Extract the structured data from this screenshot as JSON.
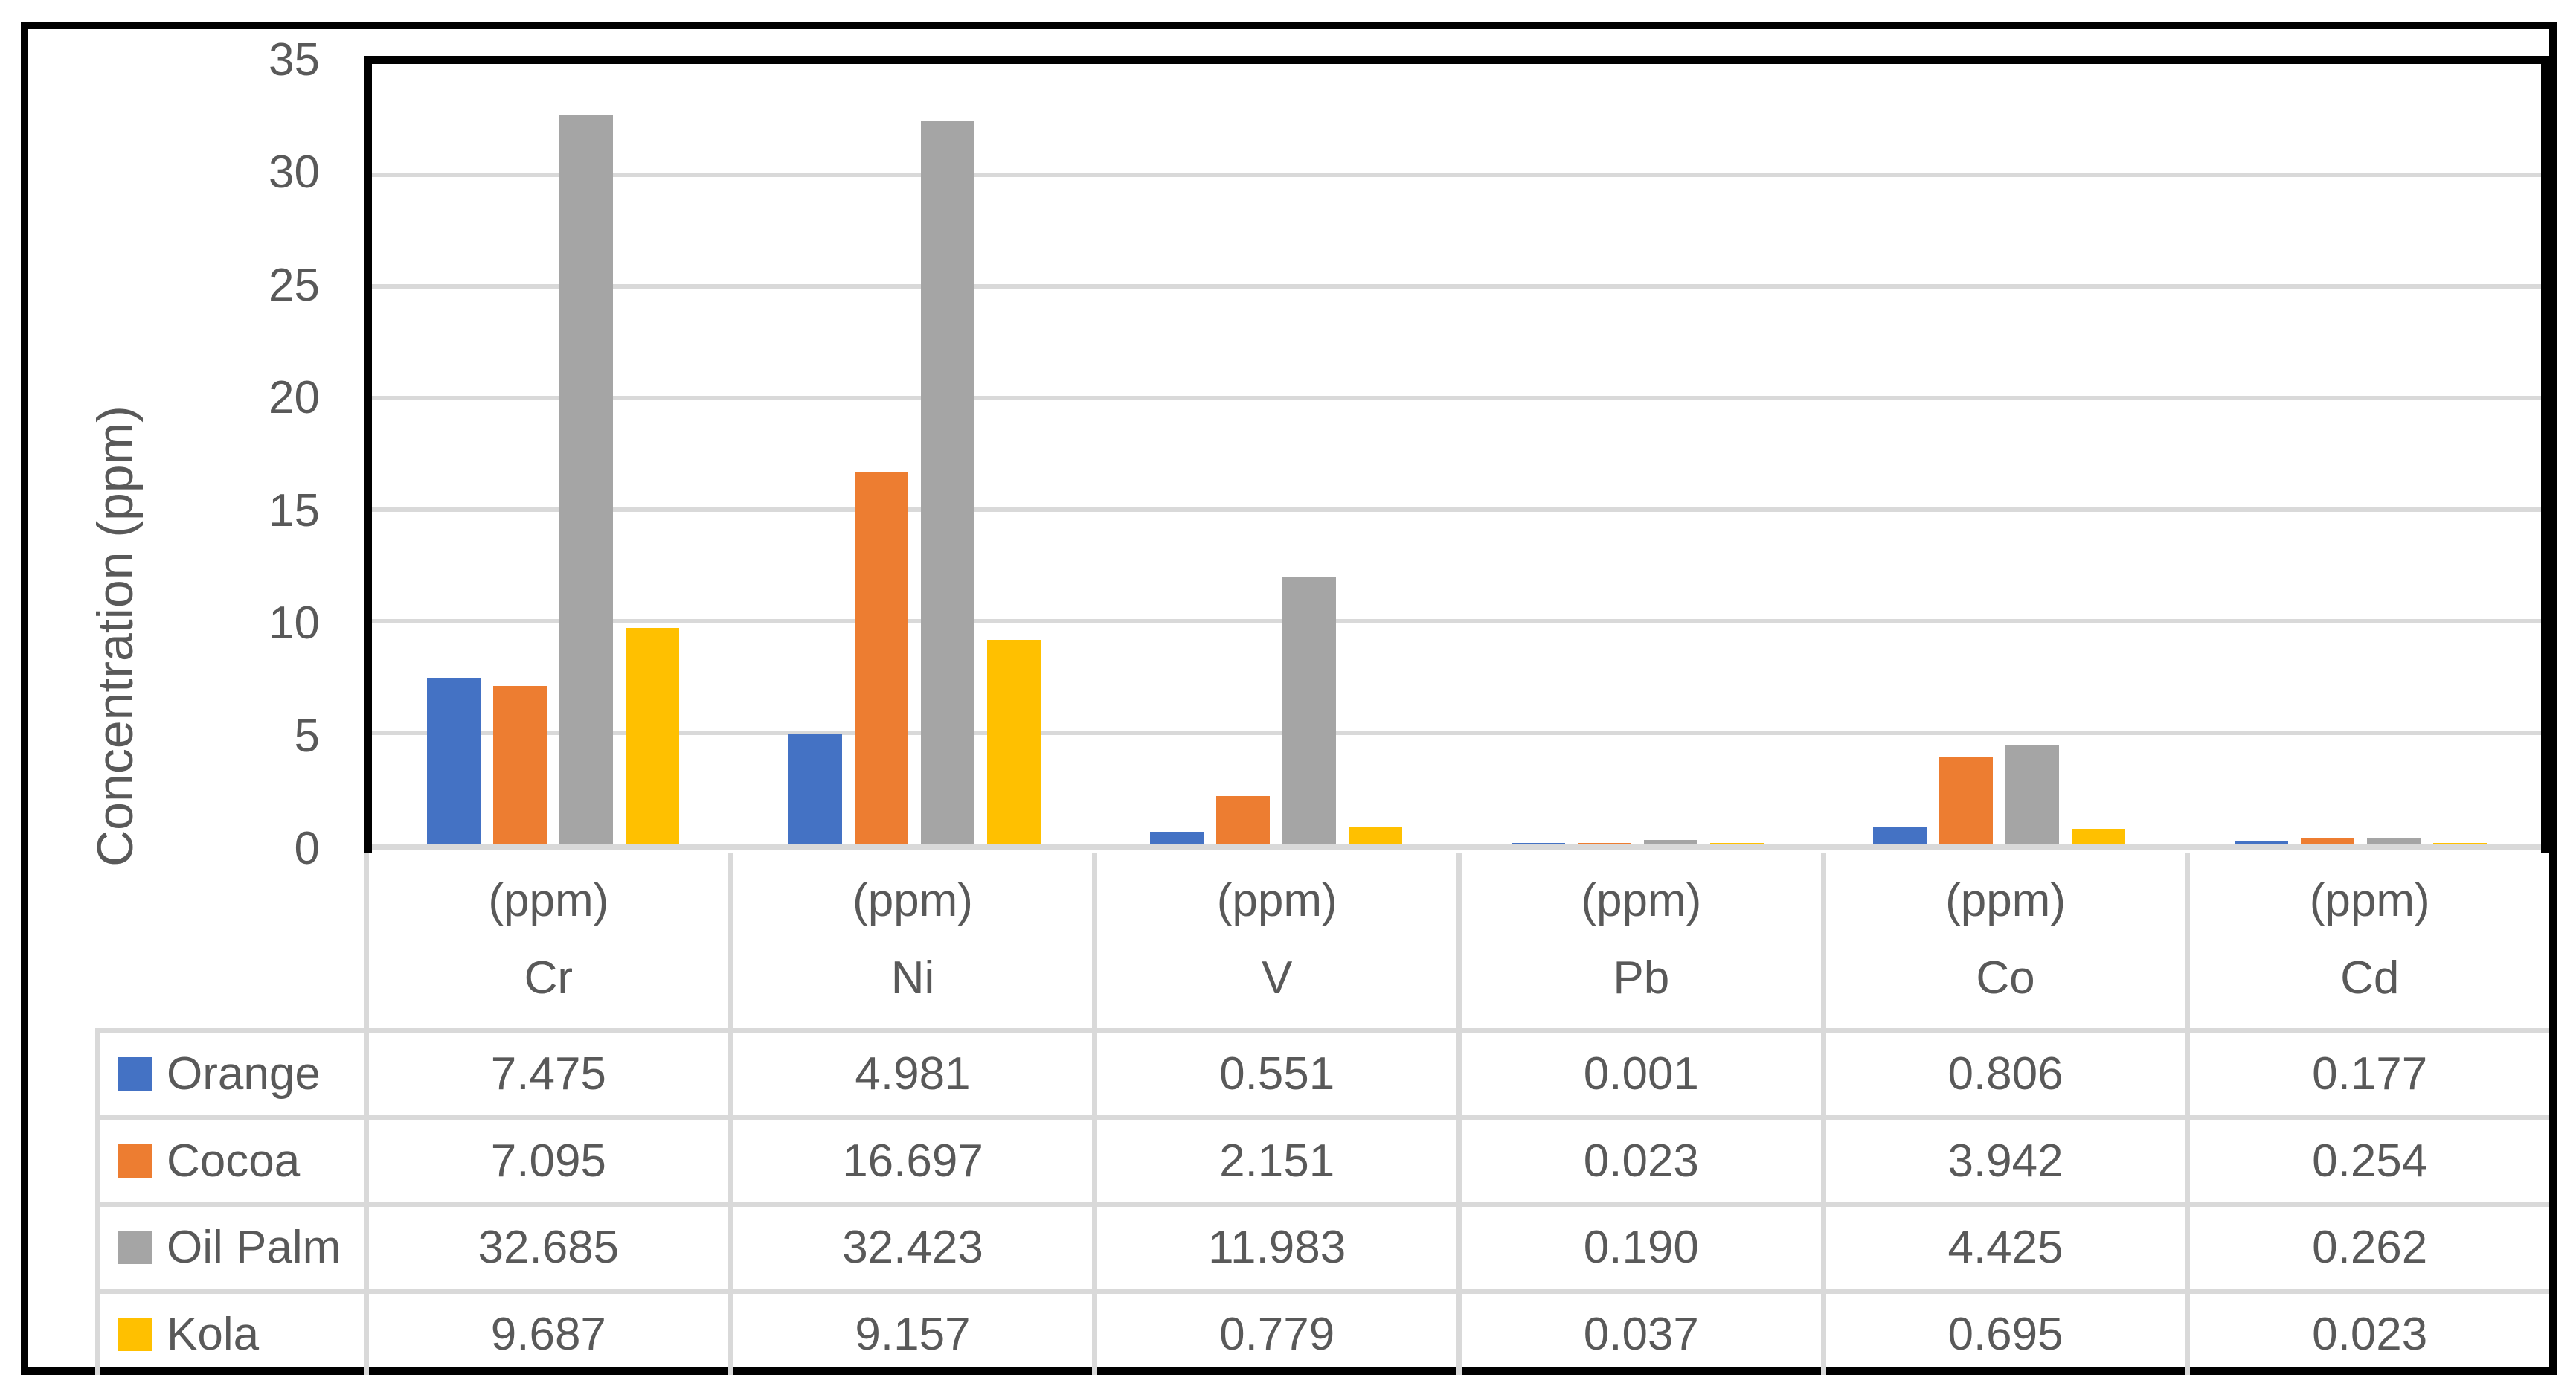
{
  "chart_data": {
    "type": "bar",
    "title": "",
    "xlabel": "",
    "ylabel": "Concentration (ppm)",
    "ylim": [
      0,
      35
    ],
    "ytick_interval": 5,
    "ytick_labels": [
      "0",
      "5",
      "10",
      "15",
      "20",
      "25",
      "30",
      "35"
    ],
    "gridline_values": [
      5,
      10,
      15,
      20,
      25,
      30
    ],
    "grid": "horizontal",
    "legend_position": "data-table-left-column",
    "categories": [
      {
        "unit": "(ppm)",
        "element": "Cr"
      },
      {
        "unit": "(ppm)",
        "element": "Ni"
      },
      {
        "unit": "(ppm)",
        "element": "V"
      },
      {
        "unit": "(ppm)",
        "element": "Pb"
      },
      {
        "unit": "(ppm)",
        "element": "Co"
      },
      {
        "unit": "(ppm)",
        "element": "Cd"
      }
    ],
    "series": [
      {
        "name": "Orange",
        "color": "#4472C4",
        "values": [
          7.475,
          4.981,
          0.551,
          0.001,
          0.806,
          0.177
        ],
        "value_labels": [
          "7.475",
          "4.981",
          "0.551",
          "0.001",
          "0.806",
          "0.177"
        ]
      },
      {
        "name": "Cocoa",
        "color": "#ED7D31",
        "values": [
          7.095,
          16.697,
          2.151,
          0.023,
          3.942,
          0.254
        ],
        "value_labels": [
          "7.095",
          "16.697",
          "2.151",
          "0.023",
          "3.942",
          "0.254"
        ]
      },
      {
        "name": "Oil Palm",
        "color": "#A5A5A5",
        "values": [
          32.685,
          32.423,
          11.983,
          0.19,
          4.425,
          0.262
        ],
        "value_labels": [
          "32.685",
          "32.423",
          "11.983",
          "0.190",
          "4.425",
          "0.262"
        ]
      },
      {
        "name": "Kola",
        "color": "#FFC000",
        "values": [
          9.687,
          9.157,
          0.779,
          0.037,
          0.695,
          0.023
        ],
        "value_labels": [
          "9.687",
          "9.157",
          "0.779",
          "0.037",
          "0.695",
          "0.023"
        ]
      }
    ]
  },
  "colors": {
    "text": "#595959",
    "gridline": "#D9D9D9",
    "axis_line": "#D9D9D9",
    "plot_border": "#000000",
    "figure_border": "#000000",
    "background": "#FFFFFF"
  }
}
